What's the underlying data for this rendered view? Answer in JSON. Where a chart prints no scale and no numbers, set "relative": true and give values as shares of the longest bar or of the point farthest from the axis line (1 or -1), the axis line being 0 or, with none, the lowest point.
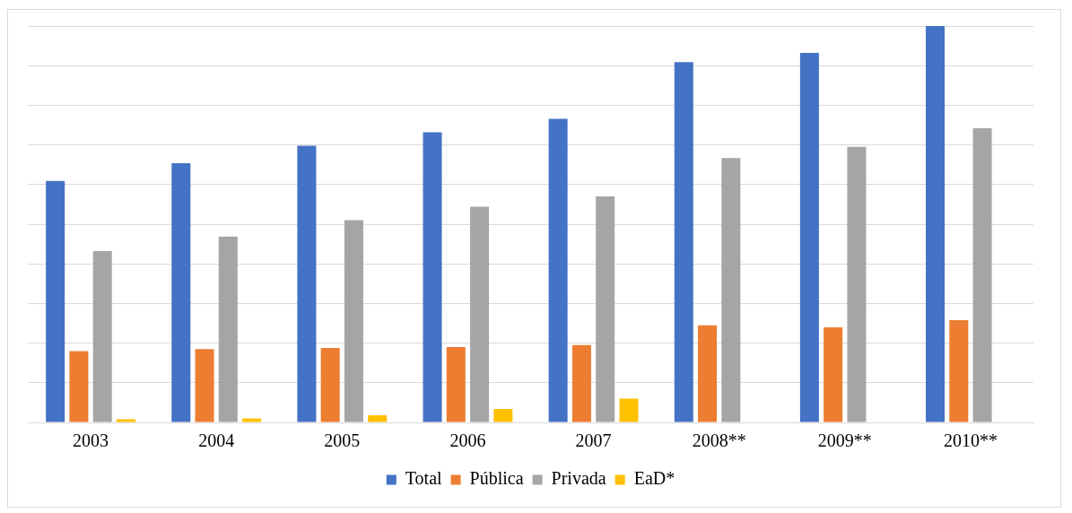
{
  "chart_data": {
    "type": "bar",
    "relative": true,
    "grid": "y",
    "legend": "bottom",
    "categories": [
      "2003",
      "2004",
      "2005",
      "2006",
      "2007",
      "2008**",
      "2009**",
      "2010**"
    ],
    "series": [
      {
        "name": "Total",
        "color": "#4472c4",
        "values": [
          0.609,
          0.654,
          0.698,
          0.732,
          0.766,
          0.909,
          0.932,
          1
        ]
      },
      {
        "name": "Pública",
        "color": "#ed7d31",
        "values": [
          0.18,
          0.185,
          0.188,
          0.19,
          0.195,
          0.245,
          0.24,
          0.258
        ]
      },
      {
        "name": "Privada",
        "color": "#a5a5a5",
        "values": [
          0.432,
          0.469,
          0.51,
          0.544,
          0.57,
          0.667,
          0.695,
          0.742
        ]
      },
      {
        "name": "EaD*",
        "color": "#ffc000",
        "values": [
          0.008,
          0.01,
          0.018,
          0.034,
          0.06,
          null,
          null,
          null
        ]
      }
    ]
  }
}
